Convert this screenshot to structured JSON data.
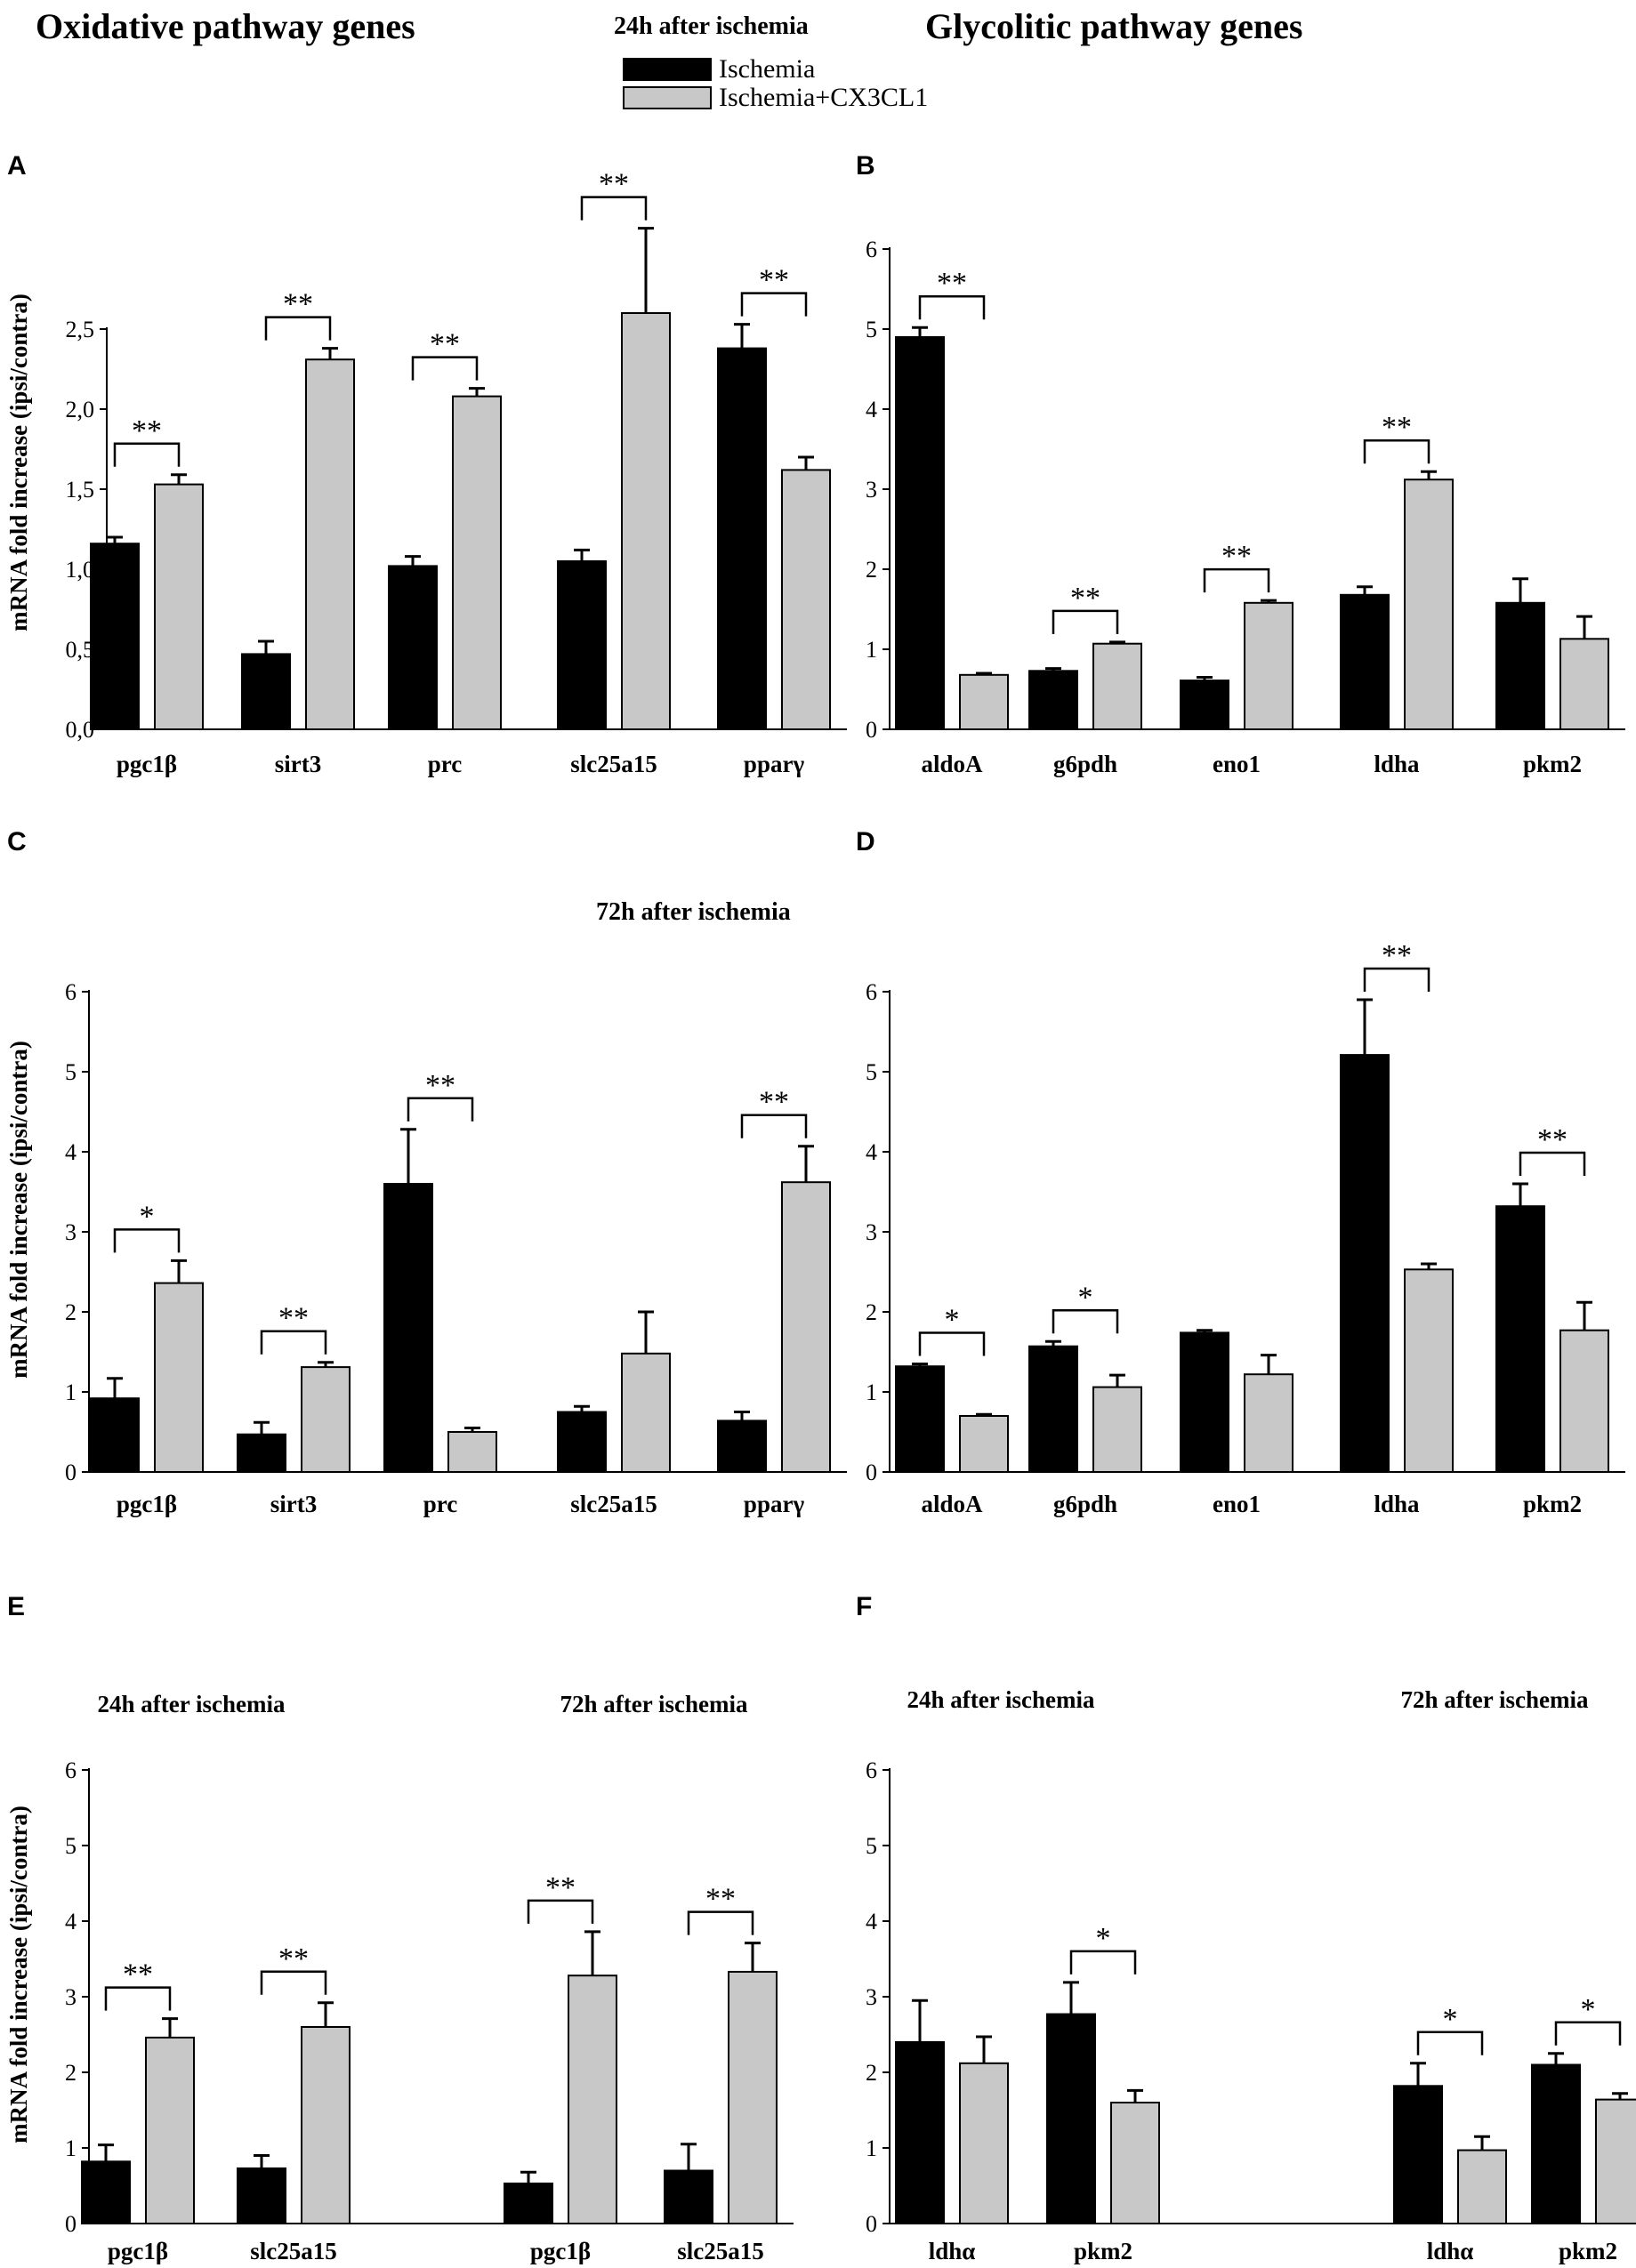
{
  "headers": {
    "left_title": "Oxidative pathway genes",
    "right_title": "Glycolitic pathway genes",
    "time_24h": "24h after ischemia",
    "time_72h": "72h after ischemia"
  },
  "legend": {
    "items": [
      {
        "name": "Ischemia",
        "color": "#000000"
      },
      {
        "name": "Ischemia+CX3CL1",
        "color": "#c8c8c8"
      }
    ]
  },
  "colors": {
    "ischemia": "#000000",
    "cx3cl1": "#c8c8c8",
    "axis": "#000000"
  },
  "chart_data": [
    {
      "panel": "A",
      "type": "bar",
      "ylabel": "mRNA fold increase (ipsi/contra)",
      "ylim": [
        0,
        3.0
      ],
      "yticks": [
        0,
        0.5,
        1.0,
        1.5,
        2.0,
        2.5
      ],
      "ytick_labels": [
        "0,0",
        "0,5",
        "1,0",
        "1,5",
        "2,0",
        "2,5"
      ],
      "categories": [
        "pgc1β",
        "sirt3",
        "prc",
        "slc25a15",
        "pparγ"
      ],
      "series": [
        {
          "name": "Ischemia",
          "values": [
            1.16,
            0.47,
            1.02,
            1.05,
            2.38
          ],
          "errors": [
            0.04,
            0.08,
            0.06,
            0.07,
            0.15
          ]
        },
        {
          "name": "Ischemia+CX3CL1",
          "values": [
            1.53,
            2.31,
            2.08,
            2.6,
            1.62
          ],
          "errors": [
            0.06,
            0.07,
            0.05,
            0.53,
            0.08
          ]
        }
      ],
      "annotations": [
        {
          "category": 0,
          "label": "**"
        },
        {
          "category": 1,
          "label": "**"
        },
        {
          "category": 2,
          "label": "**"
        },
        {
          "category": 3,
          "label": "**"
        },
        {
          "category": 4,
          "label": "**"
        }
      ]
    },
    {
      "panel": "B",
      "type": "bar",
      "ylabel": "",
      "ylim": [
        0,
        6
      ],
      "yticks": [
        0,
        1,
        2,
        3,
        4,
        5,
        6
      ],
      "ytick_labels": [
        "0",
        "1",
        "2",
        "3",
        "4",
        "5",
        "6"
      ],
      "categories": [
        "aldoA",
        "g6pdh",
        "eno1",
        "ldha",
        "pkm2"
      ],
      "series": [
        {
          "name": "Ischemia",
          "values": [
            4.9,
            0.73,
            0.61,
            1.68,
            1.58
          ],
          "errors": [
            0.12,
            0.03,
            0.04,
            0.1,
            0.3
          ]
        },
        {
          "name": "Ischemia+CX3CL1",
          "values": [
            0.68,
            1.07,
            1.58,
            3.12,
            1.13
          ],
          "errors": [
            0.02,
            0.02,
            0.03,
            0.1,
            0.28
          ]
        }
      ],
      "annotations": [
        {
          "category": 0,
          "label": "**"
        },
        {
          "category": 1,
          "label": "**"
        },
        {
          "category": 2,
          "label": "**"
        },
        {
          "category": 3,
          "label": "**"
        }
      ]
    },
    {
      "panel": "C",
      "type": "bar",
      "ylabel": "mRNA fold increase (ipsi/contra)",
      "ylim": [
        0,
        6
      ],
      "yticks": [
        0,
        1,
        2,
        3,
        4,
        5,
        6
      ],
      "ytick_labels": [
        "0",
        "1",
        "2",
        "3",
        "4",
        "5",
        "6"
      ],
      "categories": [
        "pgc1β",
        "sirt3",
        "prc",
        "slc25a15",
        "pparγ"
      ],
      "series": [
        {
          "name": "Ischemia",
          "values": [
            0.92,
            0.47,
            3.6,
            0.75,
            0.64
          ],
          "errors": [
            0.25,
            0.15,
            0.68,
            0.07,
            0.11
          ]
        },
        {
          "name": "Ischemia+CX3CL1",
          "values": [
            2.36,
            1.31,
            0.5,
            1.48,
            3.62
          ],
          "errors": [
            0.28,
            0.06,
            0.05,
            0.52,
            0.45
          ]
        }
      ],
      "annotations": [
        {
          "category": 0,
          "label": "*"
        },
        {
          "category": 1,
          "label": "**"
        },
        {
          "category": 2,
          "label": "**"
        },
        {
          "category": 4,
          "label": "**"
        }
      ]
    },
    {
      "panel": "D",
      "type": "bar",
      "ylabel": "",
      "ylim": [
        0,
        6
      ],
      "yticks": [
        0,
        1,
        2,
        3,
        4,
        5,
        6
      ],
      "ytick_labels": [
        "0",
        "1",
        "2",
        "3",
        "4",
        "5",
        "6"
      ],
      "categories": [
        "aldoA",
        "g6pdh",
        "eno1",
        "ldha",
        "pkm2"
      ],
      "series": [
        {
          "name": "Ischemia",
          "values": [
            1.32,
            1.57,
            1.74,
            5.21,
            3.32
          ],
          "errors": [
            0.03,
            0.06,
            0.03,
            0.69,
            0.28
          ]
        },
        {
          "name": "Ischemia+CX3CL1",
          "values": [
            0.7,
            1.06,
            1.22,
            2.53,
            1.77
          ],
          "errors": [
            0.02,
            0.15,
            0.24,
            0.07,
            0.35
          ]
        }
      ],
      "annotations": [
        {
          "category": 0,
          "label": "*"
        },
        {
          "category": 1,
          "label": "*"
        },
        {
          "category": 3,
          "label": "**"
        },
        {
          "category": 4,
          "label": "**"
        }
      ]
    },
    {
      "panel": "E",
      "type": "bar",
      "ylabel": "mRNA fold increase (ipsi/contra)",
      "ylim": [
        0,
        6
      ],
      "yticks": [
        0,
        1,
        2,
        3,
        4,
        5,
        6
      ],
      "ytick_labels": [
        "0",
        "1",
        "2",
        "3",
        "4",
        "5",
        "6"
      ],
      "group_labels": [
        "24h after ischemia",
        "72h after ischemia"
      ],
      "categories": [
        "pgc1β",
        "slc25a15",
        "pgc1β",
        "slc25a15"
      ],
      "series": [
        {
          "name": "Ischemia",
          "values": [
            0.82,
            0.73,
            0.53,
            0.7
          ],
          "errors": [
            0.22,
            0.17,
            0.15,
            0.35
          ]
        },
        {
          "name": "Ischemia+CX3CL1",
          "values": [
            2.46,
            2.6,
            3.28,
            3.33
          ],
          "errors": [
            0.25,
            0.32,
            0.58,
            0.38
          ]
        }
      ],
      "annotations": [
        {
          "category": 0,
          "label": "**"
        },
        {
          "category": 1,
          "label": "**"
        },
        {
          "category": 2,
          "label": "**"
        },
        {
          "category": 3,
          "label": "**"
        }
      ]
    },
    {
      "panel": "F",
      "type": "bar",
      "ylabel": "",
      "ylim": [
        0,
        6
      ],
      "yticks": [
        0,
        1,
        2,
        3,
        4,
        5,
        6
      ],
      "ytick_labels": [
        "0",
        "1",
        "2",
        "3",
        "4",
        "5",
        "6"
      ],
      "group_labels": [
        "24h after ischemia",
        "72h after ischemia"
      ],
      "categories": [
        "ldhα",
        "pkm2",
        "ldhα",
        "pkm2"
      ],
      "series": [
        {
          "name": "Ischemia",
          "values": [
            2.4,
            2.77,
            1.82,
            2.1
          ],
          "errors": [
            0.55,
            0.42,
            0.3,
            0.15
          ]
        },
        {
          "name": "Ischemia+CX3CL1",
          "values": [
            2.12,
            1.6,
            0.97,
            1.64
          ],
          "errors": [
            0.35,
            0.16,
            0.18,
            0.08
          ]
        }
      ],
      "annotations": [
        {
          "category": 1,
          "label": "*"
        },
        {
          "category": 2,
          "label": "*"
        },
        {
          "category": 3,
          "label": "*"
        }
      ]
    }
  ]
}
